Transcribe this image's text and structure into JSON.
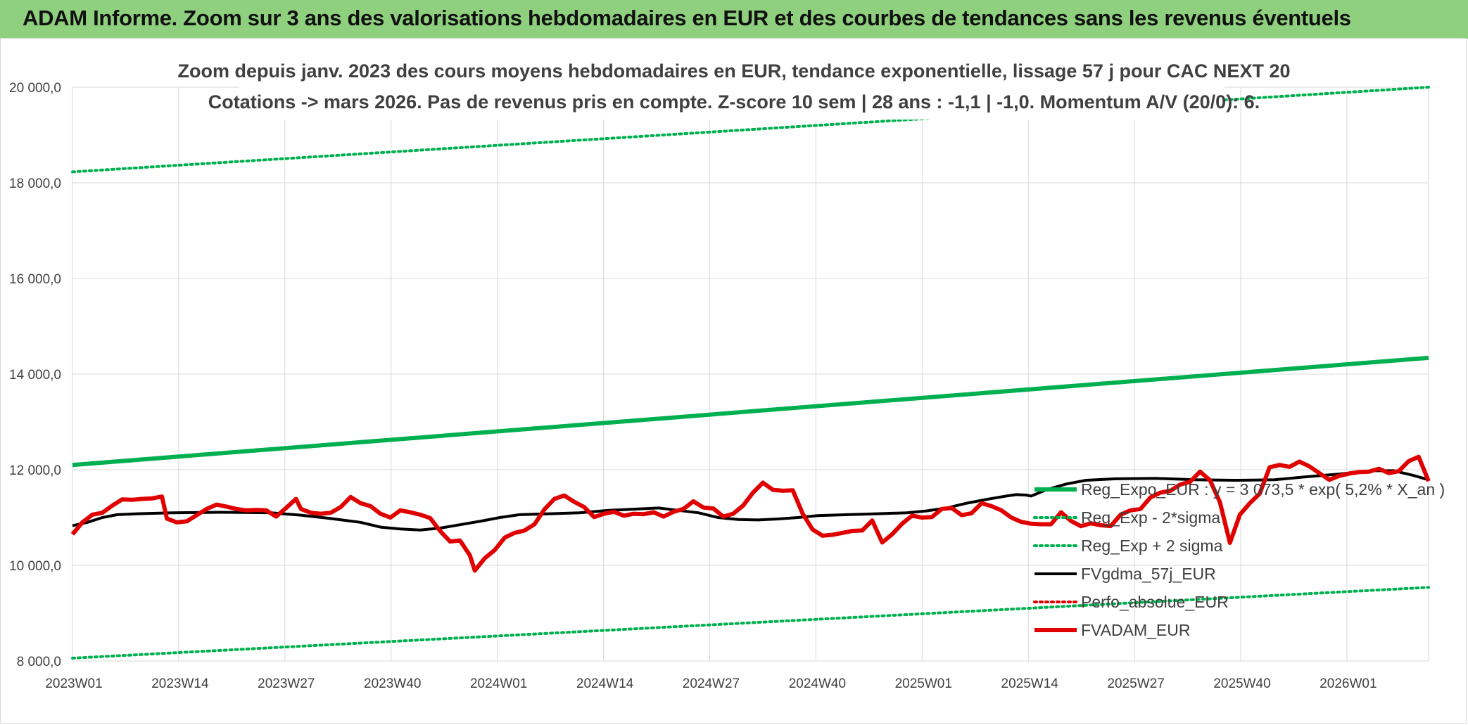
{
  "banner": {
    "title": "ADAM Informe. Zoom sur 3 ans des valorisations hebdomadaires en EUR et des courbes de tendances sans les revenus éventuels"
  },
  "colors": {
    "banner_bg": "#8fd07f",
    "trend": "#00b050",
    "smooth": "#000000",
    "price": "#e00000",
    "perfo": "#e00000",
    "grid": "#d9d9d9"
  },
  "chart_data": {
    "type": "line",
    "title_line1": "Zoom depuis janv. 2023 des cours moyens hebdomadaires en EUR, tendance exponentielle, lissage 57 j pour CAC NEXT 20",
    "title_line2": "Cotations -> mars 2026. Pas de revenus pris en compte. Z-score 10 sem | 28 ans : -1,1 | -1,0. Momentum A/V (20/0): 6.",
    "ylim": [
      8000,
      20000
    ],
    "y_ticks": [
      "8 000,0",
      "10 000,0",
      "12 000,0",
      "14 000,0",
      "16 000,0",
      "18 000,0",
      "20 000,0"
    ],
    "x_ticks": [
      "2023W01",
      "2023W14",
      "2023W27",
      "2023W40",
      "2024W01",
      "2024W14",
      "2024W27",
      "2024W40",
      "2025W01",
      "2025W14",
      "2025W27",
      "2025W40",
      "2026W01"
    ],
    "weeks_count": 167,
    "grid": true,
    "legend_position": "right-inside",
    "series": [
      {
        "name": "Reg_Expo_EUR : y = 3 073,5 * exp( 5,2% * X_an )",
        "style": "solid-thick",
        "color": "#00b050",
        "values": [
          [
            0,
            12100
          ],
          [
            166,
            14340
          ]
        ]
      },
      {
        "name": "Reg_Exp - 2*sigma",
        "style": "dotted",
        "color": "#00b050",
        "values": [
          [
            0,
            8060
          ],
          [
            166,
            9540
          ]
        ]
      },
      {
        "name": "Reg_Exp + 2 sigma",
        "style": "dotted",
        "color": "#00b050",
        "values": [
          [
            0,
            18230
          ],
          [
            166,
            20000
          ]
        ]
      },
      {
        "name": "FVgdma_57j_EUR",
        "style": "solid",
        "color": "#000000",
        "values": [
          [
            0,
            10830
          ],
          [
            3,
            10900
          ],
          [
            6,
            11000
          ],
          [
            9,
            11060
          ],
          [
            13,
            11080
          ],
          [
            20,
            11100
          ],
          [
            30,
            11110
          ],
          [
            40,
            11100
          ],
          [
            46,
            11050
          ],
          [
            52,
            10980
          ],
          [
            58,
            10900
          ],
          [
            62,
            10800
          ],
          [
            66,
            10760
          ],
          [
            70,
            10740
          ],
          [
            74,
            10780
          ],
          [
            78,
            10850
          ],
          [
            82,
            10920
          ],
          [
            86,
            11000
          ],
          [
            90,
            11060
          ],
          [
            96,
            11080
          ],
          [
            102,
            11100
          ],
          [
            108,
            11150
          ],
          [
            114,
            11180
          ],
          [
            118,
            11200
          ],
          [
            122,
            11150
          ],
          [
            126,
            11100
          ],
          [
            130,
            11000
          ],
          [
            134,
            10960
          ],
          [
            138,
            10950
          ],
          [
            142,
            10970
          ],
          [
            146,
            11000
          ],
          [
            150,
            11040
          ],
          [
            156,
            11060
          ],
          [
            162,
            11080
          ],
          [
            168,
            11100
          ],
          [
            172,
            11140
          ],
          [
            176,
            11200
          ],
          [
            180,
            11300
          ],
          [
            184,
            11380
          ],
          [
            188,
            11450
          ],
          [
            190,
            11480
          ],
          [
            192,
            11470
          ],
          [
            193,
            11450
          ],
          [
            196,
            11580
          ],
          [
            200,
            11700
          ],
          [
            204,
            11780
          ],
          [
            210,
            11810
          ],
          [
            218,
            11820
          ],
          [
            226,
            11790
          ],
          [
            234,
            11780
          ],
          [
            242,
            11790
          ],
          [
            248,
            11850
          ],
          [
            254,
            11900
          ],
          [
            258,
            11940
          ],
          [
            262,
            11980
          ],
          [
            266,
            11980
          ],
          [
            270,
            11880
          ],
          [
            273,
            11790
          ]
        ]
      },
      {
        "name": "Perfo_absolue_EUR",
        "style": "dotted",
        "color": "#e00000",
        "values": []
      },
      {
        "name": "FVADAM_EUR",
        "style": "solid-thick",
        "color": "#e00000",
        "values": [
          [
            0,
            10650
          ],
          [
            2,
            10900
          ],
          [
            4,
            11060
          ],
          [
            6,
            11100
          ],
          [
            8,
            11250
          ],
          [
            10,
            11380
          ],
          [
            12,
            11370
          ],
          [
            14,
            11390
          ],
          [
            16,
            11400
          ],
          [
            18,
            11440
          ],
          [
            19,
            10980
          ],
          [
            21,
            10900
          ],
          [
            23,
            10920
          ],
          [
            25,
            11050
          ],
          [
            27,
            11180
          ],
          [
            29,
            11270
          ],
          [
            31,
            11230
          ],
          [
            33,
            11180
          ],
          [
            35,
            11150
          ],
          [
            37,
            11160
          ],
          [
            39,
            11150
          ],
          [
            41,
            11020
          ],
          [
            43,
            11200
          ],
          [
            45,
            11390
          ],
          [
            46,
            11180
          ],
          [
            48,
            11100
          ],
          [
            50,
            11080
          ],
          [
            52,
            11100
          ],
          [
            54,
            11220
          ],
          [
            56,
            11430
          ],
          [
            58,
            11300
          ],
          [
            60,
            11240
          ],
          [
            62,
            11080
          ],
          [
            64,
            11000
          ],
          [
            66,
            11150
          ],
          [
            68,
            11110
          ],
          [
            70,
            11060
          ],
          [
            72,
            10990
          ],
          [
            74,
            10720
          ],
          [
            76,
            10500
          ],
          [
            78,
            10520
          ],
          [
            80,
            10210
          ],
          [
            81,
            9890
          ],
          [
            83,
            10150
          ],
          [
            85,
            10320
          ],
          [
            87,
            10580
          ],
          [
            89,
            10680
          ],
          [
            91,
            10730
          ],
          [
            93,
            10860
          ],
          [
            95,
            11170
          ],
          [
            97,
            11390
          ],
          [
            99,
            11460
          ],
          [
            101,
            11330
          ],
          [
            103,
            11220
          ],
          [
            105,
            11010
          ],
          [
            107,
            11080
          ],
          [
            109,
            11120
          ],
          [
            111,
            11040
          ],
          [
            113,
            11080
          ],
          [
            115,
            11070
          ],
          [
            117,
            11110
          ],
          [
            119,
            11020
          ],
          [
            121,
            11120
          ],
          [
            123,
            11180
          ],
          [
            125,
            11340
          ],
          [
            127,
            11210
          ],
          [
            129,
            11190
          ],
          [
            131,
            11020
          ],
          [
            133,
            11080
          ],
          [
            135,
            11250
          ],
          [
            137,
            11520
          ],
          [
            139,
            11730
          ],
          [
            141,
            11580
          ],
          [
            143,
            11560
          ],
          [
            145,
            11570
          ],
          [
            147,
            11080
          ],
          [
            149,
            10750
          ],
          [
            151,
            10620
          ],
          [
            153,
            10640
          ],
          [
            155,
            10680
          ],
          [
            157,
            10720
          ],
          [
            159,
            10730
          ],
          [
            161,
            10940
          ],
          [
            163,
            10480
          ],
          [
            165,
            10650
          ],
          [
            167,
            10870
          ],
          [
            169,
            11040
          ],
          [
            171,
            11000
          ],
          [
            173,
            11010
          ],
          [
            175,
            11180
          ],
          [
            177,
            11200
          ],
          [
            179,
            11050
          ],
          [
            181,
            11090
          ],
          [
            183,
            11300
          ],
          [
            185,
            11240
          ],
          [
            187,
            11150
          ],
          [
            189,
            11000
          ],
          [
            191,
            10910
          ],
          [
            193,
            10870
          ],
          [
            195,
            10860
          ],
          [
            197,
            10860
          ],
          [
            199,
            11110
          ],
          [
            201,
            10930
          ],
          [
            203,
            10820
          ],
          [
            205,
            10880
          ],
          [
            207,
            10840
          ],
          [
            209,
            10820
          ],
          [
            211,
            11060
          ],
          [
            213,
            11150
          ],
          [
            215,
            11180
          ],
          [
            217,
            11420
          ],
          [
            219,
            11520
          ],
          [
            221,
            11560
          ],
          [
            223,
            11690
          ],
          [
            225,
            11750
          ],
          [
            227,
            11960
          ],
          [
            229,
            11780
          ],
          [
            231,
            11320
          ],
          [
            233,
            10470
          ],
          [
            235,
            11060
          ],
          [
            237,
            11300
          ],
          [
            239,
            11500
          ],
          [
            241,
            12050
          ],
          [
            243,
            12100
          ],
          [
            245,
            12060
          ],
          [
            247,
            12170
          ],
          [
            249,
            12070
          ],
          [
            251,
            11930
          ],
          [
            253,
            11790
          ],
          [
            255,
            11870
          ],
          [
            257,
            11920
          ],
          [
            259,
            11950
          ],
          [
            261,
            11960
          ],
          [
            263,
            12020
          ],
          [
            265,
            11930
          ],
          [
            267,
            11970
          ],
          [
            269,
            12180
          ],
          [
            271,
            12270
          ],
          [
            273,
            11760
          ]
        ]
      }
    ]
  }
}
